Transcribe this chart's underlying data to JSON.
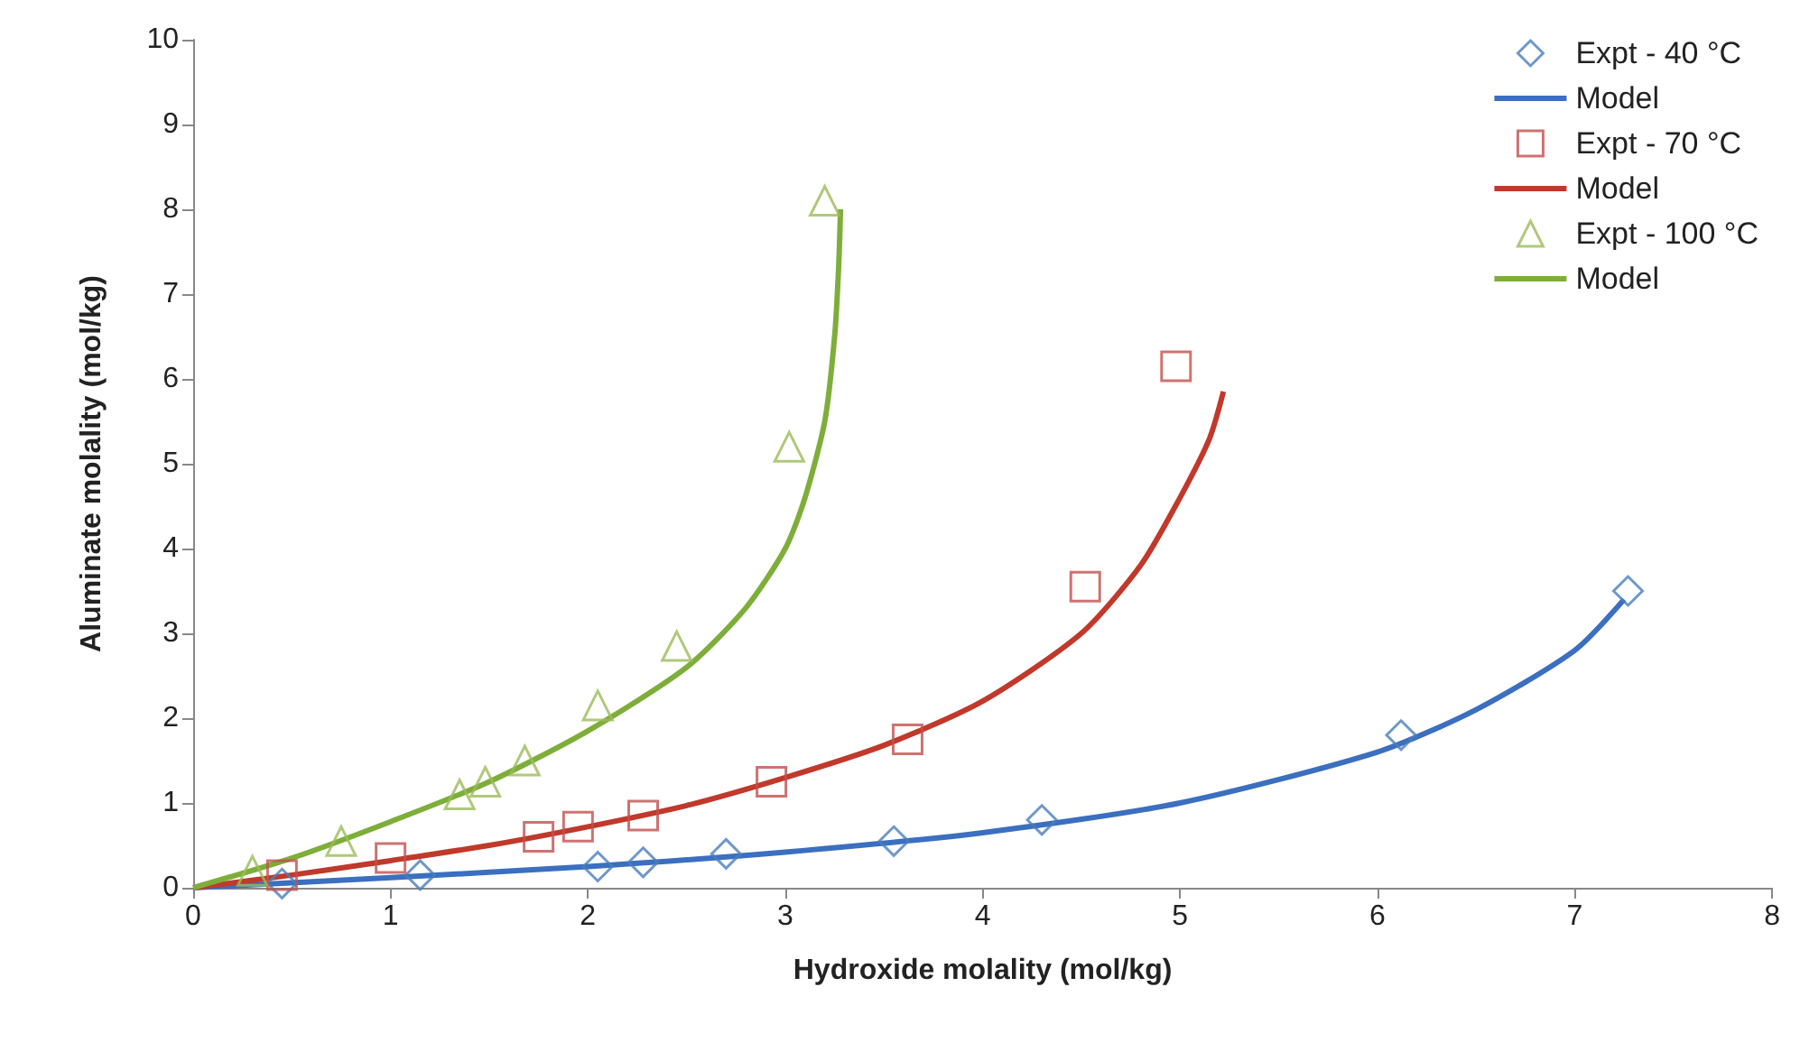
{
  "chart_data": {
    "type": "scatter",
    "xlabel": "Hydroxide molality (mol/kg)",
    "ylabel": "Aluminate molality (mol/kg)",
    "xlim": [
      0,
      8
    ],
    "xticks": [
      0,
      1,
      2,
      3,
      4,
      5,
      6,
      7,
      8
    ],
    "ylim": [
      0,
      10
    ],
    "yticks": [
      0,
      1,
      2,
      3,
      4,
      5,
      6,
      7,
      8,
      9,
      10
    ],
    "grid": false,
    "legend": "top right",
    "series": [
      {
        "name": "Expt - 40 °C",
        "marker": "diamond",
        "color": "#4a7ebb",
        "x": [
          0.45,
          1.15,
          2.05,
          2.28,
          2.7,
          3.55,
          4.3,
          6.12,
          7.27
        ],
        "values": [
          0.05,
          0.15,
          0.25,
          0.3,
          0.4,
          0.55,
          0.8,
          1.8,
          3.5
        ]
      },
      {
        "name": "Model",
        "type": "line",
        "marker": "none",
        "color": "#3b6fbf",
        "x": [
          0,
          1,
          2,
          3,
          4,
          5,
          6,
          6.5,
          7,
          7.25
        ],
        "values": [
          0,
          0.12,
          0.25,
          0.42,
          0.65,
          1.0,
          1.6,
          2.1,
          2.8,
          3.4
        ]
      },
      {
        "name": "Expt - 70 °C",
        "marker": "square",
        "color": "#c0504d",
        "x": [
          0.45,
          1.0,
          1.75,
          1.95,
          2.28,
          2.93,
          3.62,
          4.52,
          4.98
        ],
        "values": [
          0.15,
          0.35,
          0.6,
          0.72,
          0.85,
          1.25,
          1.75,
          3.55,
          6.15
        ]
      },
      {
        "name": "Model",
        "type": "line",
        "marker": "none",
        "color": "#c0392b",
        "x": [
          0,
          0.5,
          1,
          1.5,
          2,
          2.5,
          3,
          3.5,
          4,
          4.5,
          4.8,
          5.0,
          5.15,
          5.22
        ],
        "values": [
          0,
          0.15,
          0.32,
          0.5,
          0.72,
          0.97,
          1.3,
          1.68,
          2.2,
          3.0,
          3.8,
          4.6,
          5.3,
          5.85
        ]
      },
      {
        "name": "Expt - 100 °C",
        "marker": "triangle",
        "color": "#9bbb59",
        "x": [
          0.3,
          0.75,
          1.35,
          1.48,
          1.68,
          2.05,
          2.45,
          3.02,
          3.2
        ],
        "values": [
          0.2,
          0.55,
          1.1,
          1.25,
          1.5,
          2.15,
          2.85,
          5.2,
          8.1
        ]
      },
      {
        "name": "Model",
        "type": "line",
        "marker": "none",
        "color": "#7eae3a",
        "x": [
          0,
          0.5,
          1,
          1.5,
          2,
          2.5,
          2.8,
          3.0,
          3.1,
          3.2,
          3.25,
          3.27,
          3.28
        ],
        "values": [
          0,
          0.35,
          0.78,
          1.25,
          1.85,
          2.6,
          3.3,
          4.0,
          4.6,
          5.5,
          6.5,
          7.3,
          8.0
        ]
      }
    ]
  }
}
